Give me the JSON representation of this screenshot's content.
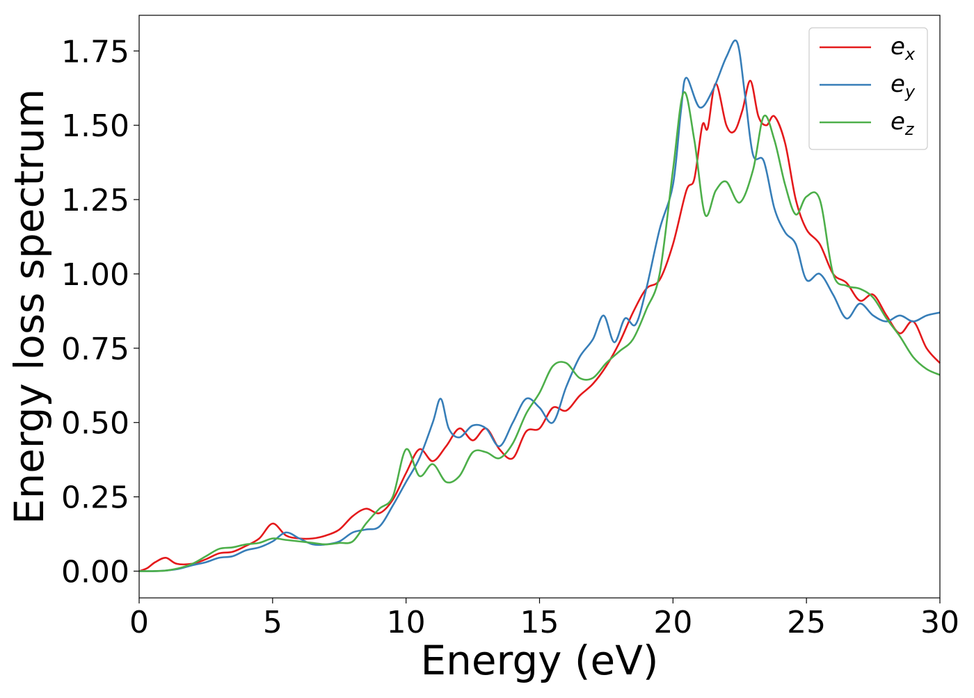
{
  "chart_data": {
    "type": "line",
    "title": "",
    "xlabel": "Energy (eV)",
    "ylabel": "Energy loss spectrum",
    "xlim": [
      0,
      30
    ],
    "ylim": [
      -0.09,
      1.87
    ],
    "xticks": [
      0,
      5,
      10,
      15,
      20,
      25,
      30
    ],
    "xtick_labels": [
      "0",
      "5",
      "10",
      "15",
      "20",
      "25",
      "30"
    ],
    "yticks": [
      0,
      0.25,
      0.5,
      0.75,
      1.0,
      1.25,
      1.5,
      1.75
    ],
    "ytick_labels": [
      "0.00",
      "0.25",
      "0.50",
      "0.75",
      "1.00",
      "1.25",
      "1.50",
      "1.75"
    ],
    "grid": false,
    "legend_position": "top-right",
    "series": [
      {
        "name": "e_x",
        "label_base": "e",
        "label_sub": "x",
        "color": "#e41a1c",
        "points": [
          [
            0,
            0.0
          ],
          [
            0.3,
            0.01
          ],
          [
            0.6,
            0.03
          ],
          [
            1.0,
            0.045
          ],
          [
            1.4,
            0.025
          ],
          [
            2.0,
            0.025
          ],
          [
            2.5,
            0.04
          ],
          [
            3.0,
            0.06
          ],
          [
            3.5,
            0.065
          ],
          [
            4.0,
            0.085
          ],
          [
            4.5,
            0.11
          ],
          [
            5.0,
            0.16
          ],
          [
            5.5,
            0.12
          ],
          [
            6.0,
            0.11
          ],
          [
            6.5,
            0.11
          ],
          [
            7.0,
            0.12
          ],
          [
            7.5,
            0.14
          ],
          [
            8.0,
            0.185
          ],
          [
            8.5,
            0.21
          ],
          [
            9.0,
            0.195
          ],
          [
            9.5,
            0.24
          ],
          [
            10.0,
            0.33
          ],
          [
            10.5,
            0.41
          ],
          [
            11.0,
            0.37
          ],
          [
            11.5,
            0.42
          ],
          [
            12.0,
            0.48
          ],
          [
            12.5,
            0.44
          ],
          [
            13.0,
            0.48
          ],
          [
            13.5,
            0.41
          ],
          [
            14.0,
            0.38
          ],
          [
            14.5,
            0.47
          ],
          [
            15.0,
            0.48
          ],
          [
            15.5,
            0.55
          ],
          [
            16.0,
            0.54
          ],
          [
            16.5,
            0.59
          ],
          [
            17.0,
            0.63
          ],
          [
            17.5,
            0.69
          ],
          [
            18.0,
            0.77
          ],
          [
            18.5,
            0.87
          ],
          [
            19.0,
            0.95
          ],
          [
            19.5,
            0.98
          ],
          [
            20.0,
            1.1
          ],
          [
            20.5,
            1.28
          ],
          [
            20.8,
            1.32
          ],
          [
            21.1,
            1.5
          ],
          [
            21.3,
            1.49
          ],
          [
            21.6,
            1.64
          ],
          [
            22.0,
            1.5
          ],
          [
            22.3,
            1.48
          ],
          [
            22.6,
            1.55
          ],
          [
            22.9,
            1.65
          ],
          [
            23.2,
            1.53
          ],
          [
            23.5,
            1.5
          ],
          [
            23.8,
            1.53
          ],
          [
            24.2,
            1.44
          ],
          [
            24.6,
            1.25
          ],
          [
            25.0,
            1.15
          ],
          [
            25.5,
            1.1
          ],
          [
            26.0,
            1.0
          ],
          [
            26.5,
            0.97
          ],
          [
            27.0,
            0.91
          ],
          [
            27.5,
            0.93
          ],
          [
            28.0,
            0.86
          ],
          [
            28.5,
            0.8
          ],
          [
            29.0,
            0.84
          ],
          [
            29.5,
            0.75
          ],
          [
            30.0,
            0.7
          ]
        ]
      },
      {
        "name": "e_y",
        "label_base": "e",
        "label_sub": "y",
        "color": "#377eb8",
        "points": [
          [
            0,
            0.0
          ],
          [
            0.5,
            0.0
          ],
          [
            1.0,
            0.002
          ],
          [
            1.5,
            0.008
          ],
          [
            2.0,
            0.02
          ],
          [
            2.5,
            0.03
          ],
          [
            3.0,
            0.045
          ],
          [
            3.5,
            0.05
          ],
          [
            4.0,
            0.07
          ],
          [
            4.5,
            0.08
          ],
          [
            5.0,
            0.1
          ],
          [
            5.5,
            0.13
          ],
          [
            6.0,
            0.11
          ],
          [
            6.5,
            0.09
          ],
          [
            7.0,
            0.09
          ],
          [
            7.5,
            0.1
          ],
          [
            8.0,
            0.13
          ],
          [
            8.5,
            0.14
          ],
          [
            9.0,
            0.15
          ],
          [
            9.5,
            0.22
          ],
          [
            10.0,
            0.3
          ],
          [
            10.5,
            0.38
          ],
          [
            11.0,
            0.5
          ],
          [
            11.3,
            0.58
          ],
          [
            11.6,
            0.48
          ],
          [
            12.0,
            0.45
          ],
          [
            12.5,
            0.49
          ],
          [
            13.0,
            0.48
          ],
          [
            13.5,
            0.42
          ],
          [
            14.0,
            0.5
          ],
          [
            14.5,
            0.58
          ],
          [
            15.0,
            0.55
          ],
          [
            15.5,
            0.5
          ],
          [
            16.0,
            0.62
          ],
          [
            16.5,
            0.72
          ],
          [
            17.0,
            0.78
          ],
          [
            17.4,
            0.86
          ],
          [
            17.8,
            0.77
          ],
          [
            18.2,
            0.85
          ],
          [
            18.6,
            0.83
          ],
          [
            19.0,
            0.95
          ],
          [
            19.5,
            1.15
          ],
          [
            20.0,
            1.3
          ],
          [
            20.3,
            1.55
          ],
          [
            20.5,
            1.66
          ],
          [
            21.0,
            1.56
          ],
          [
            21.5,
            1.62
          ],
          [
            22.0,
            1.73
          ],
          [
            22.4,
            1.78
          ],
          [
            22.7,
            1.6
          ],
          [
            23.0,
            1.4
          ],
          [
            23.4,
            1.38
          ],
          [
            23.8,
            1.22
          ],
          [
            24.2,
            1.14
          ],
          [
            24.6,
            1.1
          ],
          [
            25.0,
            0.98
          ],
          [
            25.5,
            1.0
          ],
          [
            26.0,
            0.93
          ],
          [
            26.5,
            0.85
          ],
          [
            27.0,
            0.9
          ],
          [
            27.5,
            0.86
          ],
          [
            28.0,
            0.84
          ],
          [
            28.5,
            0.86
          ],
          [
            29.0,
            0.84
          ],
          [
            29.5,
            0.86
          ],
          [
            30.0,
            0.87
          ]
        ]
      },
      {
        "name": "e_z",
        "label_base": "e",
        "label_sub": "z",
        "color": "#4daf4a",
        "points": [
          [
            0,
            0.0
          ],
          [
            0.5,
            0.0
          ],
          [
            1.0,
            0.002
          ],
          [
            1.5,
            0.01
          ],
          [
            2.0,
            0.025
          ],
          [
            2.5,
            0.05
          ],
          [
            3.0,
            0.075
          ],
          [
            3.5,
            0.08
          ],
          [
            4.0,
            0.09
          ],
          [
            4.5,
            0.095
          ],
          [
            5.0,
            0.11
          ],
          [
            5.5,
            0.105
          ],
          [
            6.0,
            0.1
          ],
          [
            6.5,
            0.095
          ],
          [
            7.0,
            0.09
          ],
          [
            7.5,
            0.095
          ],
          [
            8.0,
            0.1
          ],
          [
            8.5,
            0.16
          ],
          [
            9.0,
            0.21
          ],
          [
            9.5,
            0.25
          ],
          [
            10.0,
            0.41
          ],
          [
            10.5,
            0.32
          ],
          [
            11.0,
            0.36
          ],
          [
            11.5,
            0.3
          ],
          [
            12.0,
            0.32
          ],
          [
            12.5,
            0.4
          ],
          [
            13.0,
            0.4
          ],
          [
            13.5,
            0.38
          ],
          [
            14.0,
            0.43
          ],
          [
            14.5,
            0.53
          ],
          [
            15.0,
            0.6
          ],
          [
            15.5,
            0.69
          ],
          [
            16.0,
            0.7
          ],
          [
            16.5,
            0.65
          ],
          [
            17.0,
            0.65
          ],
          [
            17.5,
            0.7
          ],
          [
            18.0,
            0.74
          ],
          [
            18.5,
            0.78
          ],
          [
            19.0,
            0.88
          ],
          [
            19.5,
            1.0
          ],
          [
            20.0,
            1.35
          ],
          [
            20.4,
            1.61
          ],
          [
            20.8,
            1.45
          ],
          [
            21.2,
            1.2
          ],
          [
            21.6,
            1.28
          ],
          [
            22.0,
            1.31
          ],
          [
            22.5,
            1.24
          ],
          [
            23.0,
            1.35
          ],
          [
            23.4,
            1.53
          ],
          [
            23.8,
            1.45
          ],
          [
            24.2,
            1.3
          ],
          [
            24.6,
            1.2
          ],
          [
            25.0,
            1.26
          ],
          [
            25.5,
            1.25
          ],
          [
            26.0,
            1.0
          ],
          [
            26.5,
            0.96
          ],
          [
            27.0,
            0.95
          ],
          [
            27.5,
            0.92
          ],
          [
            28.0,
            0.85
          ],
          [
            28.5,
            0.79
          ],
          [
            29.0,
            0.72
          ],
          [
            29.5,
            0.68
          ],
          [
            30.0,
            0.66
          ]
        ]
      }
    ]
  }
}
